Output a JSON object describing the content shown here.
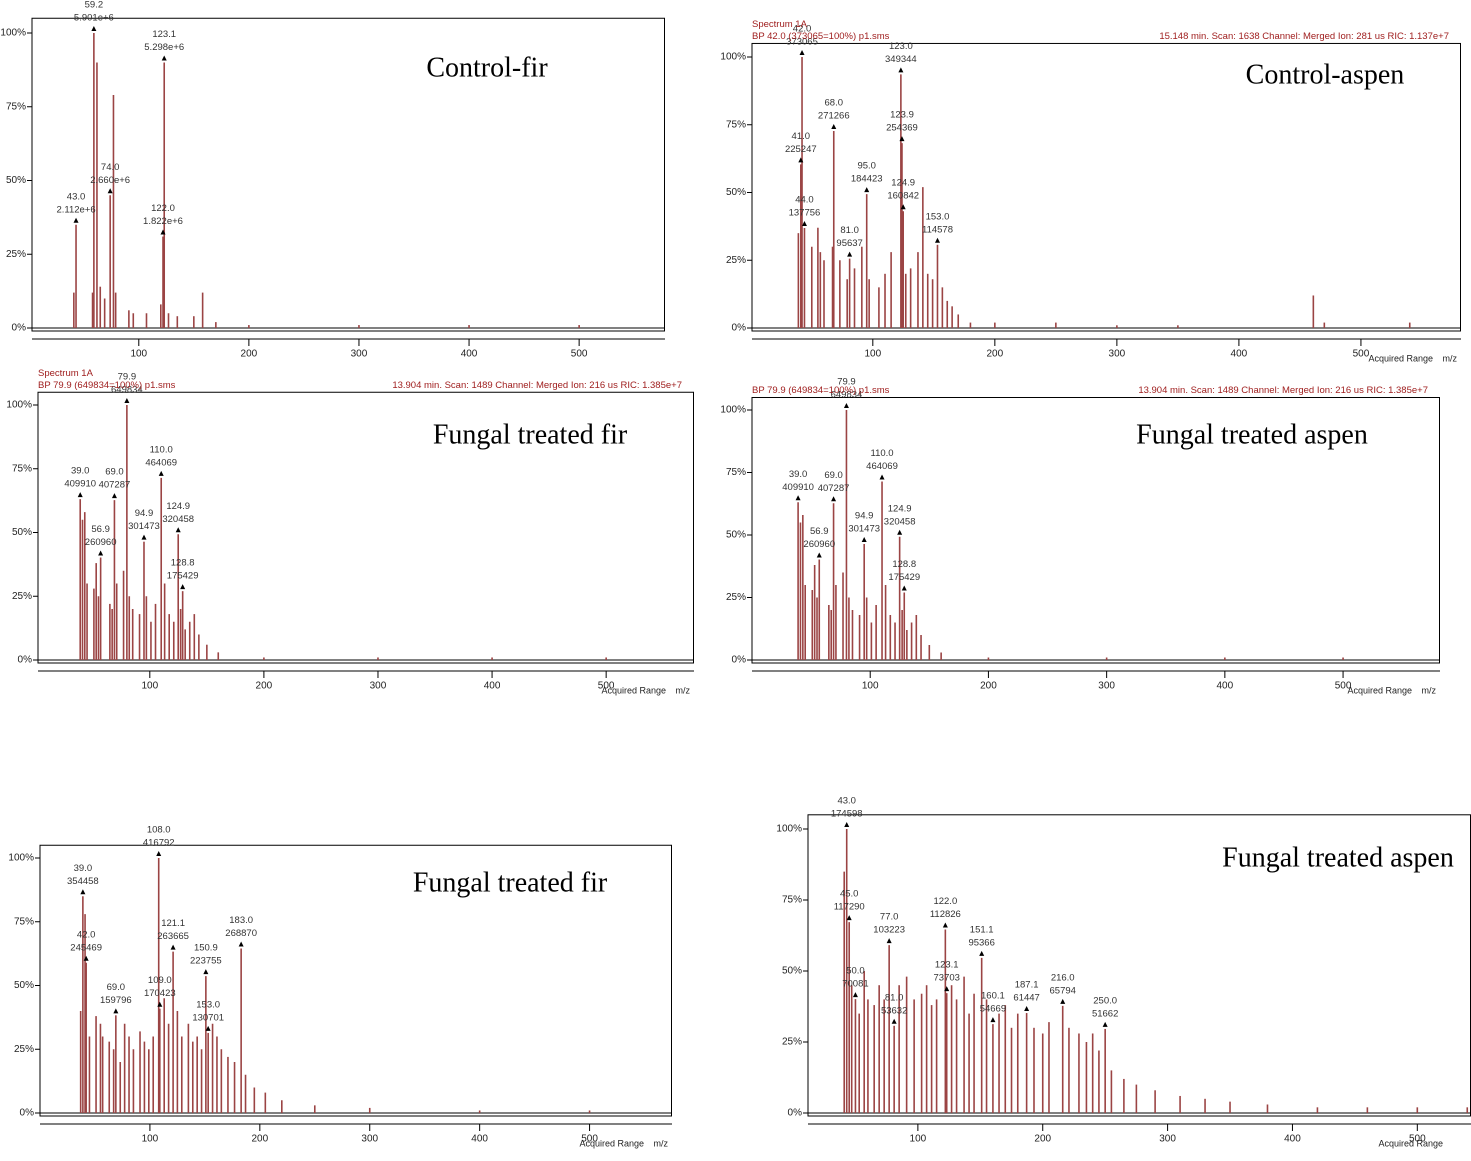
{
  "chart_data": [
    {
      "type": "bar",
      "title": "Control-fir",
      "color": "#9b4444",
      "xlim": [
        3,
        578
      ],
      "xticks": [
        100,
        200,
        300,
        400,
        500
      ],
      "ylim": [
        0,
        105
      ],
      "yticks": [
        {
          "value": 0,
          "label": "0%"
        },
        {
          "value": 25,
          "label": "25%"
        },
        {
          "value": 50,
          "label": "50%"
        },
        {
          "value": 75,
          "label": "75%"
        },
        {
          "value": 100,
          "label": "100%"
        }
      ],
      "annotated_peaks": {
        "x": [
          43.0,
          59.2,
          74.0,
          123.1,
          122.0
        ],
        "values": [
          35,
          100,
          45,
          90,
          31
        ],
        "mz_labels": [
          "43.0",
          "59.2",
          "74.0",
          "123.1",
          "122.0"
        ],
        "intensity_labels": [
          "2.112e+6",
          "5.901e+6",
          "2.660e+6",
          "5.298e+6",
          "1.822e+6"
        ]
      },
      "peaks": {
        "x": [
          41,
          58,
          62,
          65,
          69,
          77,
          79,
          91,
          95,
          107,
          120,
          127,
          135,
          150,
          158,
          170,
          200,
          300,
          400,
          500
        ],
        "values": [
          12,
          12,
          90,
          14,
          10,
          79,
          12,
          6,
          5,
          5,
          8,
          5,
          4,
          4,
          12,
          2,
          1,
          1,
          1,
          1
        ]
      }
    },
    {
      "type": "bar",
      "title": "Control-aspen",
      "color": "#9b4444",
      "header_left": [
        "Spectrum 1A",
        "BP 42.0 (373065=100%) p1.sms"
      ],
      "header_right": "15.148 min. Scan: 1638 Channel: Merged Ion: 281 us RIC: 1.137e+7",
      "range_label": "Acquired Range",
      "x_label": "m/z",
      "xlim": [
        1,
        582
      ],
      "xticks": [
        100,
        200,
        300,
        400,
        500
      ],
      "ylim": [
        0,
        105
      ],
      "yticks": [
        {
          "value": 0,
          "label": "0%"
        },
        {
          "value": 25,
          "label": "25%"
        },
        {
          "value": 50,
          "label": "50%"
        },
        {
          "value": 75,
          "label": "75%"
        },
        {
          "value": 100,
          "label": "100%"
        }
      ],
      "annotated_peaks": {
        "x": [
          42.0,
          123.0,
          68.0,
          123.9,
          41.0,
          95.0,
          124.9,
          44.0,
          81.0,
          153.0
        ],
        "values": [
          100,
          93.6,
          72.7,
          68.2,
          60.4,
          49.4,
          43.1,
          36.9,
          25.6,
          30.7
        ],
        "mz_labels": [
          "42.0",
          "123.0",
          "68.0",
          "123.9",
          "41.0",
          "95.0",
          "124.9",
          "44.0",
          "81.0",
          "153.0"
        ],
        "intensity_labels": [
          "373065",
          "349344",
          "271266",
          "254369",
          "225247",
          "184423",
          "160842",
          "137756",
          "95637",
          "114578"
        ]
      },
      "peaks": {
        "x": [
          39,
          50,
          55,
          57,
          60,
          67,
          73,
          79,
          85,
          91,
          97,
          105,
          110,
          115,
          127,
          131,
          137,
          141,
          145,
          149,
          157,
          161,
          165,
          170,
          180,
          200,
          250,
          300,
          350,
          461,
          470,
          540
        ],
        "values": [
          35,
          30,
          37,
          28,
          25,
          30,
          25,
          18,
          22,
          30,
          18,
          15,
          20,
          28,
          20,
          22,
          28,
          52,
          20,
          18,
          15,
          10,
          8,
          5,
          2,
          2,
          2,
          1,
          1,
          12,
          2,
          2
        ]
      }
    },
    {
      "type": "bar",
      "title": "Fungal treated fir",
      "color": "#9b4444",
      "header_left": [
        "Spectrum 1A",
        "BP 79.9 (649834=100%) p1.sms"
      ],
      "header_right": "13.904 min. Scan: 1489 Channel: Merged Ion: 216 us RIC: 1.385e+7",
      "range_label": "Acquired Range",
      "x_label": "m/z",
      "xlim": [
        2,
        577
      ],
      "xticks": [
        100,
        200,
        300,
        400,
        500
      ],
      "ylim": [
        0,
        105
      ],
      "yticks": [
        {
          "value": 0,
          "label": "0%"
        },
        {
          "value": 25,
          "label": "25%"
        },
        {
          "value": 50,
          "label": "50%"
        },
        {
          "value": 75,
          "label": "75%"
        },
        {
          "value": 100,
          "label": "100%"
        }
      ],
      "annotated_peaks": {
        "x": [
          79.9,
          110.0,
          39.0,
          69.0,
          124.9,
          94.9,
          56.9,
          128.8
        ],
        "values": [
          100,
          71.4,
          63.1,
          62.7,
          49.3,
          46.4,
          40.2,
          27.0
        ],
        "mz_labels": [
          "79.9",
          "110.0",
          "39.0",
          "69.0",
          "124.9",
          "94.9",
          "56.9",
          "128.8"
        ],
        "intensity_labels": [
          "649834",
          "464069",
          "409910",
          "407287",
          "320458",
          "301473",
          "260960",
          "175429"
        ]
      },
      "peaks": {
        "x": [
          41,
          43,
          45,
          51,
          53,
          55,
          65,
          67,
          71,
          77,
          82,
          85,
          91,
          97,
          101,
          105,
          113,
          117,
          121,
          127,
          131,
          135,
          139,
          143,
          150,
          160,
          200,
          300,
          400,
          500
        ],
        "values": [
          55,
          58,
          30,
          28,
          38,
          25,
          22,
          20,
          30,
          35,
          25,
          20,
          18,
          25,
          15,
          22,
          30,
          18,
          15,
          20,
          12,
          15,
          18,
          10,
          6,
          3,
          1,
          1,
          1,
          1
        ]
      }
    },
    {
      "type": "bar",
      "title": "Fungal treated aspen",
      "color": "#9b4444",
      "header_left": [
        "BP 79.9 (649834=100%) p1.sms"
      ],
      "header_right": "13.904 min. Scan: 1489 Channel: Merged Ion: 216 us RIC: 1.385e+7",
      "range_label": "Acquired Range",
      "x_label": "m/z",
      "xlim": [
        0,
        582
      ],
      "xticks": [
        100,
        200,
        300,
        400,
        500
      ],
      "ylim": [
        0,
        105
      ],
      "yticks": [
        {
          "value": 0,
          "label": "0%"
        },
        {
          "value": 25,
          "label": "25%"
        },
        {
          "value": 50,
          "label": "50%"
        },
        {
          "value": 75,
          "label": "75%"
        },
        {
          "value": 100,
          "label": "100%"
        }
      ],
      "annotated_peaks": {
        "x": [
          79.9,
          110.0,
          39.0,
          69.0,
          124.9,
          94.9,
          56.9,
          128.8
        ],
        "values": [
          100,
          71.4,
          63.1,
          62.7,
          49.3,
          46.4,
          40.2,
          27.0
        ],
        "mz_labels": [
          "79.9",
          "110.0",
          "39.0",
          "69.0",
          "124.9",
          "94.9",
          "56.9",
          "128.8"
        ],
        "intensity_labels": [
          "649834",
          "464069",
          "409910",
          "407287",
          "320458",
          "301473",
          "260960",
          "175429"
        ]
      },
      "peaks": {
        "x": [
          41,
          43,
          45,
          51,
          53,
          55,
          65,
          67,
          71,
          77,
          82,
          85,
          91,
          97,
          101,
          105,
          113,
          117,
          121,
          127,
          131,
          135,
          139,
          143,
          150,
          160,
          200,
          300,
          400,
          500
        ],
        "values": [
          55,
          58,
          30,
          28,
          38,
          25,
          22,
          20,
          30,
          35,
          25,
          20,
          18,
          25,
          15,
          22,
          30,
          18,
          15,
          20,
          12,
          15,
          18,
          10,
          6,
          3,
          1,
          1,
          1,
          1
        ]
      }
    },
    {
      "type": "bar",
      "title": "Fungal treated fir",
      "color": "#9b4444",
      "range_label": "Acquired Range",
      "x_label": "m/z",
      "xlim": [
        0,
        575
      ],
      "xticks": [
        100,
        200,
        300,
        400,
        500
      ],
      "ylim": [
        0,
        105
      ],
      "yticks": [
        {
          "value": 0,
          "label": "0%"
        },
        {
          "value": 25,
          "label": "25%"
        },
        {
          "value": 50,
          "label": "50%"
        },
        {
          "value": 75,
          "label": "75%"
        },
        {
          "value": 100,
          "label": "100%"
        }
      ],
      "annotated_peaks": {
        "x": [
          39.0,
          108.0,
          42.0,
          69.0,
          121.1,
          109.0,
          150.9,
          153.0,
          183.0
        ],
        "values": [
          85.0,
          100,
          58.9,
          38.3,
          63.3,
          40.9,
          53.7,
          31.4,
          64.5
        ],
        "mz_labels": [
          "39.0",
          "108.0",
          "42.0",
          "69.0",
          "121.1",
          "109.0",
          "150.9",
          "153.0",
          "183.0"
        ],
        "intensity_labels": [
          "354458",
          "416792",
          "245469",
          "159796",
          "263665",
          "170423",
          "223755",
          "130701",
          "268870"
        ]
      },
      "peaks": {
        "x": [
          37,
          41,
          45,
          51,
          55,
          57,
          63,
          67,
          73,
          77,
          81,
          85,
          91,
          95,
          99,
          103,
          113,
          117,
          125,
          129,
          135,
          139,
          143,
          147,
          157,
          161,
          165,
          171,
          177,
          187,
          195,
          205,
          220,
          250,
          300,
          400,
          500
        ],
        "values": [
          40,
          78,
          30,
          38,
          35,
          30,
          28,
          25,
          20,
          35,
          30,
          25,
          32,
          28,
          25,
          30,
          45,
          35,
          40,
          30,
          35,
          28,
          30,
          25,
          35,
          30,
          25,
          22,
          20,
          15,
          10,
          8,
          5,
          3,
          2,
          1,
          1
        ]
      }
    },
    {
      "type": "bar",
      "title": "Fungal treated aspen",
      "color": "#9b4444",
      "range_label": "Acquired Range",
      "xlim": [
        12,
        543
      ],
      "xticks": [
        100,
        200,
        300,
        400,
        500
      ],
      "ylim": [
        0,
        105
      ],
      "yticks": [
        {
          "value": 0,
          "label": "0%"
        },
        {
          "value": 25,
          "label": "25%"
        },
        {
          "value": 50,
          "label": "50%"
        },
        {
          "value": 75,
          "label": "75%"
        },
        {
          "value": 100,
          "label": "100%"
        }
      ],
      "annotated_peaks": {
        "x": [
          43.0,
          45.0,
          77.0,
          122.0,
          151.1,
          123.1,
          50.0,
          81.0,
          160.1,
          187.1,
          216.0,
          250.0
        ],
        "values": [
          100,
          67.2,
          59.1,
          64.6,
          54.6,
          42.2,
          40.1,
          30.7,
          31.3,
          35.2,
          37.7,
          29.6
        ],
        "mz_labels": [
          "43.0",
          "45.0",
          "77.0",
          "122.0",
          "151.1",
          "123.1",
          "50.0",
          "81.0",
          "160.1",
          "187.1",
          "216.0",
          "250.0"
        ],
        "intensity_labels": [
          "174598",
          "117290",
          "103223",
          "112826",
          "95366",
          "73703",
          "70081",
          "53632",
          "54669",
          "61447",
          "65794",
          "51662"
        ]
      },
      "peaks": {
        "x": [
          41,
          47,
          53,
          57,
          60,
          65,
          69,
          73,
          85,
          91,
          97,
          103,
          107,
          111,
          115,
          127,
          131,
          137,
          141,
          145,
          155,
          165,
          170,
          175,
          180,
          193,
          200,
          205,
          221,
          229,
          235,
          240,
          245,
          255,
          265,
          275,
          290,
          310,
          330,
          350,
          380,
          420,
          460,
          500,
          540
        ],
        "values": [
          85,
          45,
          35,
          50,
          40,
          38,
          45,
          40,
          45,
          48,
          40,
          42,
          45,
          38,
          40,
          45,
          40,
          48,
          35,
          42,
          40,
          35,
          38,
          30,
          35,
          30,
          28,
          32,
          30,
          28,
          25,
          28,
          22,
          15,
          12,
          10,
          8,
          6,
          5,
          4,
          3,
          2,
          2,
          2,
          2
        ]
      }
    }
  ]
}
